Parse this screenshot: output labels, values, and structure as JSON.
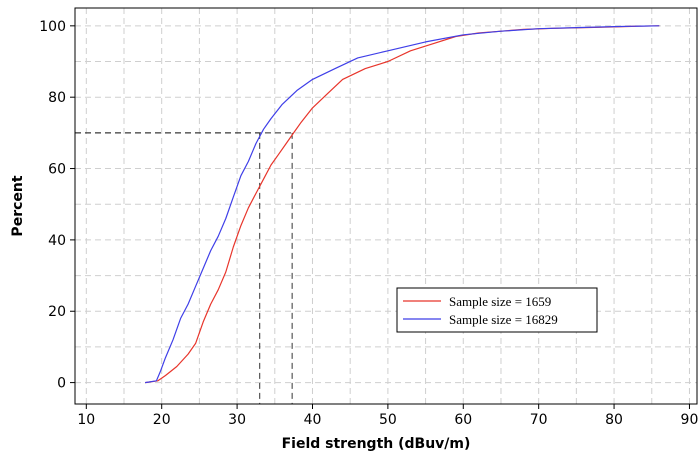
{
  "chart_data": {
    "type": "line",
    "title": "",
    "xlabel": "Field strength (dBuv/m)",
    "ylabel": "Percent",
    "xlim": [
      8.5,
      91
    ],
    "ylim": [
      -6,
      105
    ],
    "x_ticks": [
      10,
      20,
      30,
      40,
      50,
      60,
      70,
      80,
      90
    ],
    "y_ticks": [
      0,
      20,
      40,
      60,
      80,
      100
    ],
    "grid": true,
    "legend_position": "bottom-right",
    "series": [
      {
        "name": "Sample size = 1659",
        "color": "#e8352b",
        "points": [
          [
            17.8,
            0
          ],
          [
            19.5,
            0.5
          ],
          [
            20.5,
            2
          ],
          [
            22,
            4.5
          ],
          [
            23.5,
            8
          ],
          [
            24.5,
            11
          ],
          [
            25.5,
            17
          ],
          [
            26.5,
            22
          ],
          [
            27.5,
            26
          ],
          [
            28.5,
            31
          ],
          [
            29.5,
            38
          ],
          [
            30.5,
            44
          ],
          [
            31.5,
            49
          ],
          [
            32.5,
            53
          ],
          [
            33.5,
            57
          ],
          [
            34.5,
            61
          ],
          [
            35.5,
            64
          ],
          [
            36.5,
            67
          ],
          [
            37.5,
            70
          ],
          [
            38.5,
            73
          ],
          [
            40,
            77
          ],
          [
            42,
            81
          ],
          [
            44,
            85
          ],
          [
            47,
            88
          ],
          [
            50,
            90
          ],
          [
            53,
            93
          ],
          [
            56,
            95
          ],
          [
            59,
            97
          ],
          [
            62,
            98
          ],
          [
            65,
            98.5
          ],
          [
            68,
            99
          ],
          [
            72,
            99.3
          ],
          [
            76,
            99.5
          ],
          [
            80,
            99.7
          ],
          [
            83,
            99.9
          ],
          [
            86,
            100
          ]
        ]
      },
      {
        "name": "Sample size = 16829",
        "color": "#3f3fe8",
        "points": [
          [
            17.8,
            0
          ],
          [
            19.3,
            0.5
          ],
          [
            19.8,
            3
          ],
          [
            20.5,
            7
          ],
          [
            21.5,
            12
          ],
          [
            22.5,
            18
          ],
          [
            23.5,
            22
          ],
          [
            24.5,
            27
          ],
          [
            25.5,
            32
          ],
          [
            26.5,
            37
          ],
          [
            27.5,
            41
          ],
          [
            28.5,
            46
          ],
          [
            29.5,
            52
          ],
          [
            30.5,
            58
          ],
          [
            31.5,
            62
          ],
          [
            32.5,
            67
          ],
          [
            33.5,
            71
          ],
          [
            34.5,
            74
          ],
          [
            36,
            78
          ],
          [
            38,
            82
          ],
          [
            40,
            85
          ],
          [
            43,
            88
          ],
          [
            46,
            91
          ],
          [
            50,
            93
          ],
          [
            55,
            95.5
          ],
          [
            60,
            97.5
          ],
          [
            65,
            98.5
          ],
          [
            70,
            99.2
          ],
          [
            75,
            99.5
          ],
          [
            80,
            99.8
          ],
          [
            86,
            100
          ]
        ]
      }
    ],
    "reference_lines": [
      {
        "percent": 70,
        "field_strength": 33.0
      },
      {
        "percent": 70,
        "field_strength": 37.3
      }
    ]
  }
}
